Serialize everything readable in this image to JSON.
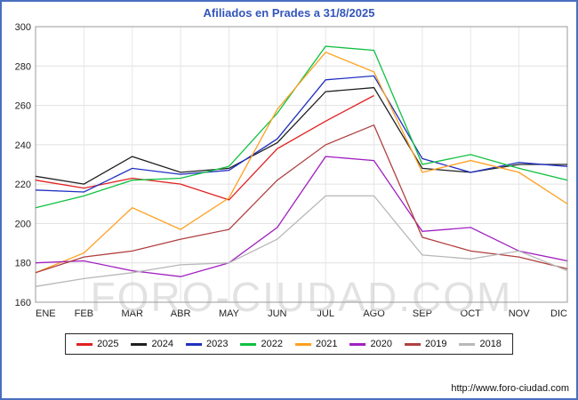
{
  "footer": {
    "url": "http://www.foro-ciudad.com"
  },
  "chart_data": {
    "type": "line",
    "title": "Afiliados en Prades a 31/8/2025",
    "watermark": "FORO-CIUDAD.COM",
    "xlabel": "",
    "ylabel": "",
    "ylim": [
      160,
      300
    ],
    "yticks": [
      160,
      180,
      200,
      220,
      240,
      260,
      280,
      300
    ],
    "grid": true,
    "legend_position": "bottom",
    "categories": [
      "ENE",
      "FEB",
      "MAR",
      "ABR",
      "MAY",
      "JUN",
      "JUL",
      "AGO",
      "SEP",
      "OCT",
      "NOV",
      "DIC"
    ],
    "series": [
      {
        "name": "2025",
        "color": "#e02020",
        "values": [
          222,
          218,
          223,
          220,
          212,
          238,
          252,
          265,
          null,
          null,
          null,
          null
        ]
      },
      {
        "name": "2024",
        "color": "#202020",
        "values": [
          224,
          220,
          234,
          226,
          228,
          241,
          267,
          269,
          228,
          226,
          230,
          230
        ]
      },
      {
        "name": "2023",
        "color": "#2030c0",
        "values": [
          217,
          216,
          228,
          225,
          227,
          243,
          273,
          275,
          233,
          226,
          231,
          229
        ]
      },
      {
        "name": "2022",
        "color": "#10c040",
        "values": [
          208,
          214,
          222,
          223,
          229,
          256,
          290,
          288,
          230,
          235,
          228,
          222
        ]
      },
      {
        "name": "2021",
        "color": "#ffa020",
        "values": [
          175,
          185,
          208,
          197,
          213,
          258,
          287,
          277,
          226,
          232,
          226,
          210
        ]
      },
      {
        "name": "2020",
        "color": "#a020c0",
        "values": [
          180,
          181,
          176,
          173,
          180,
          198,
          234,
          232,
          196,
          198,
          186,
          181
        ]
      },
      {
        "name": "2019",
        "color": "#b04040",
        "values": [
          175,
          183,
          186,
          192,
          197,
          222,
          240,
          250,
          193,
          186,
          183,
          177
        ]
      },
      {
        "name": "2018",
        "color": "#b8b8b8",
        "values": [
          168,
          172,
          175,
          179,
          180,
          192,
          214,
          214,
          184,
          182,
          186,
          176
        ]
      }
    ]
  }
}
